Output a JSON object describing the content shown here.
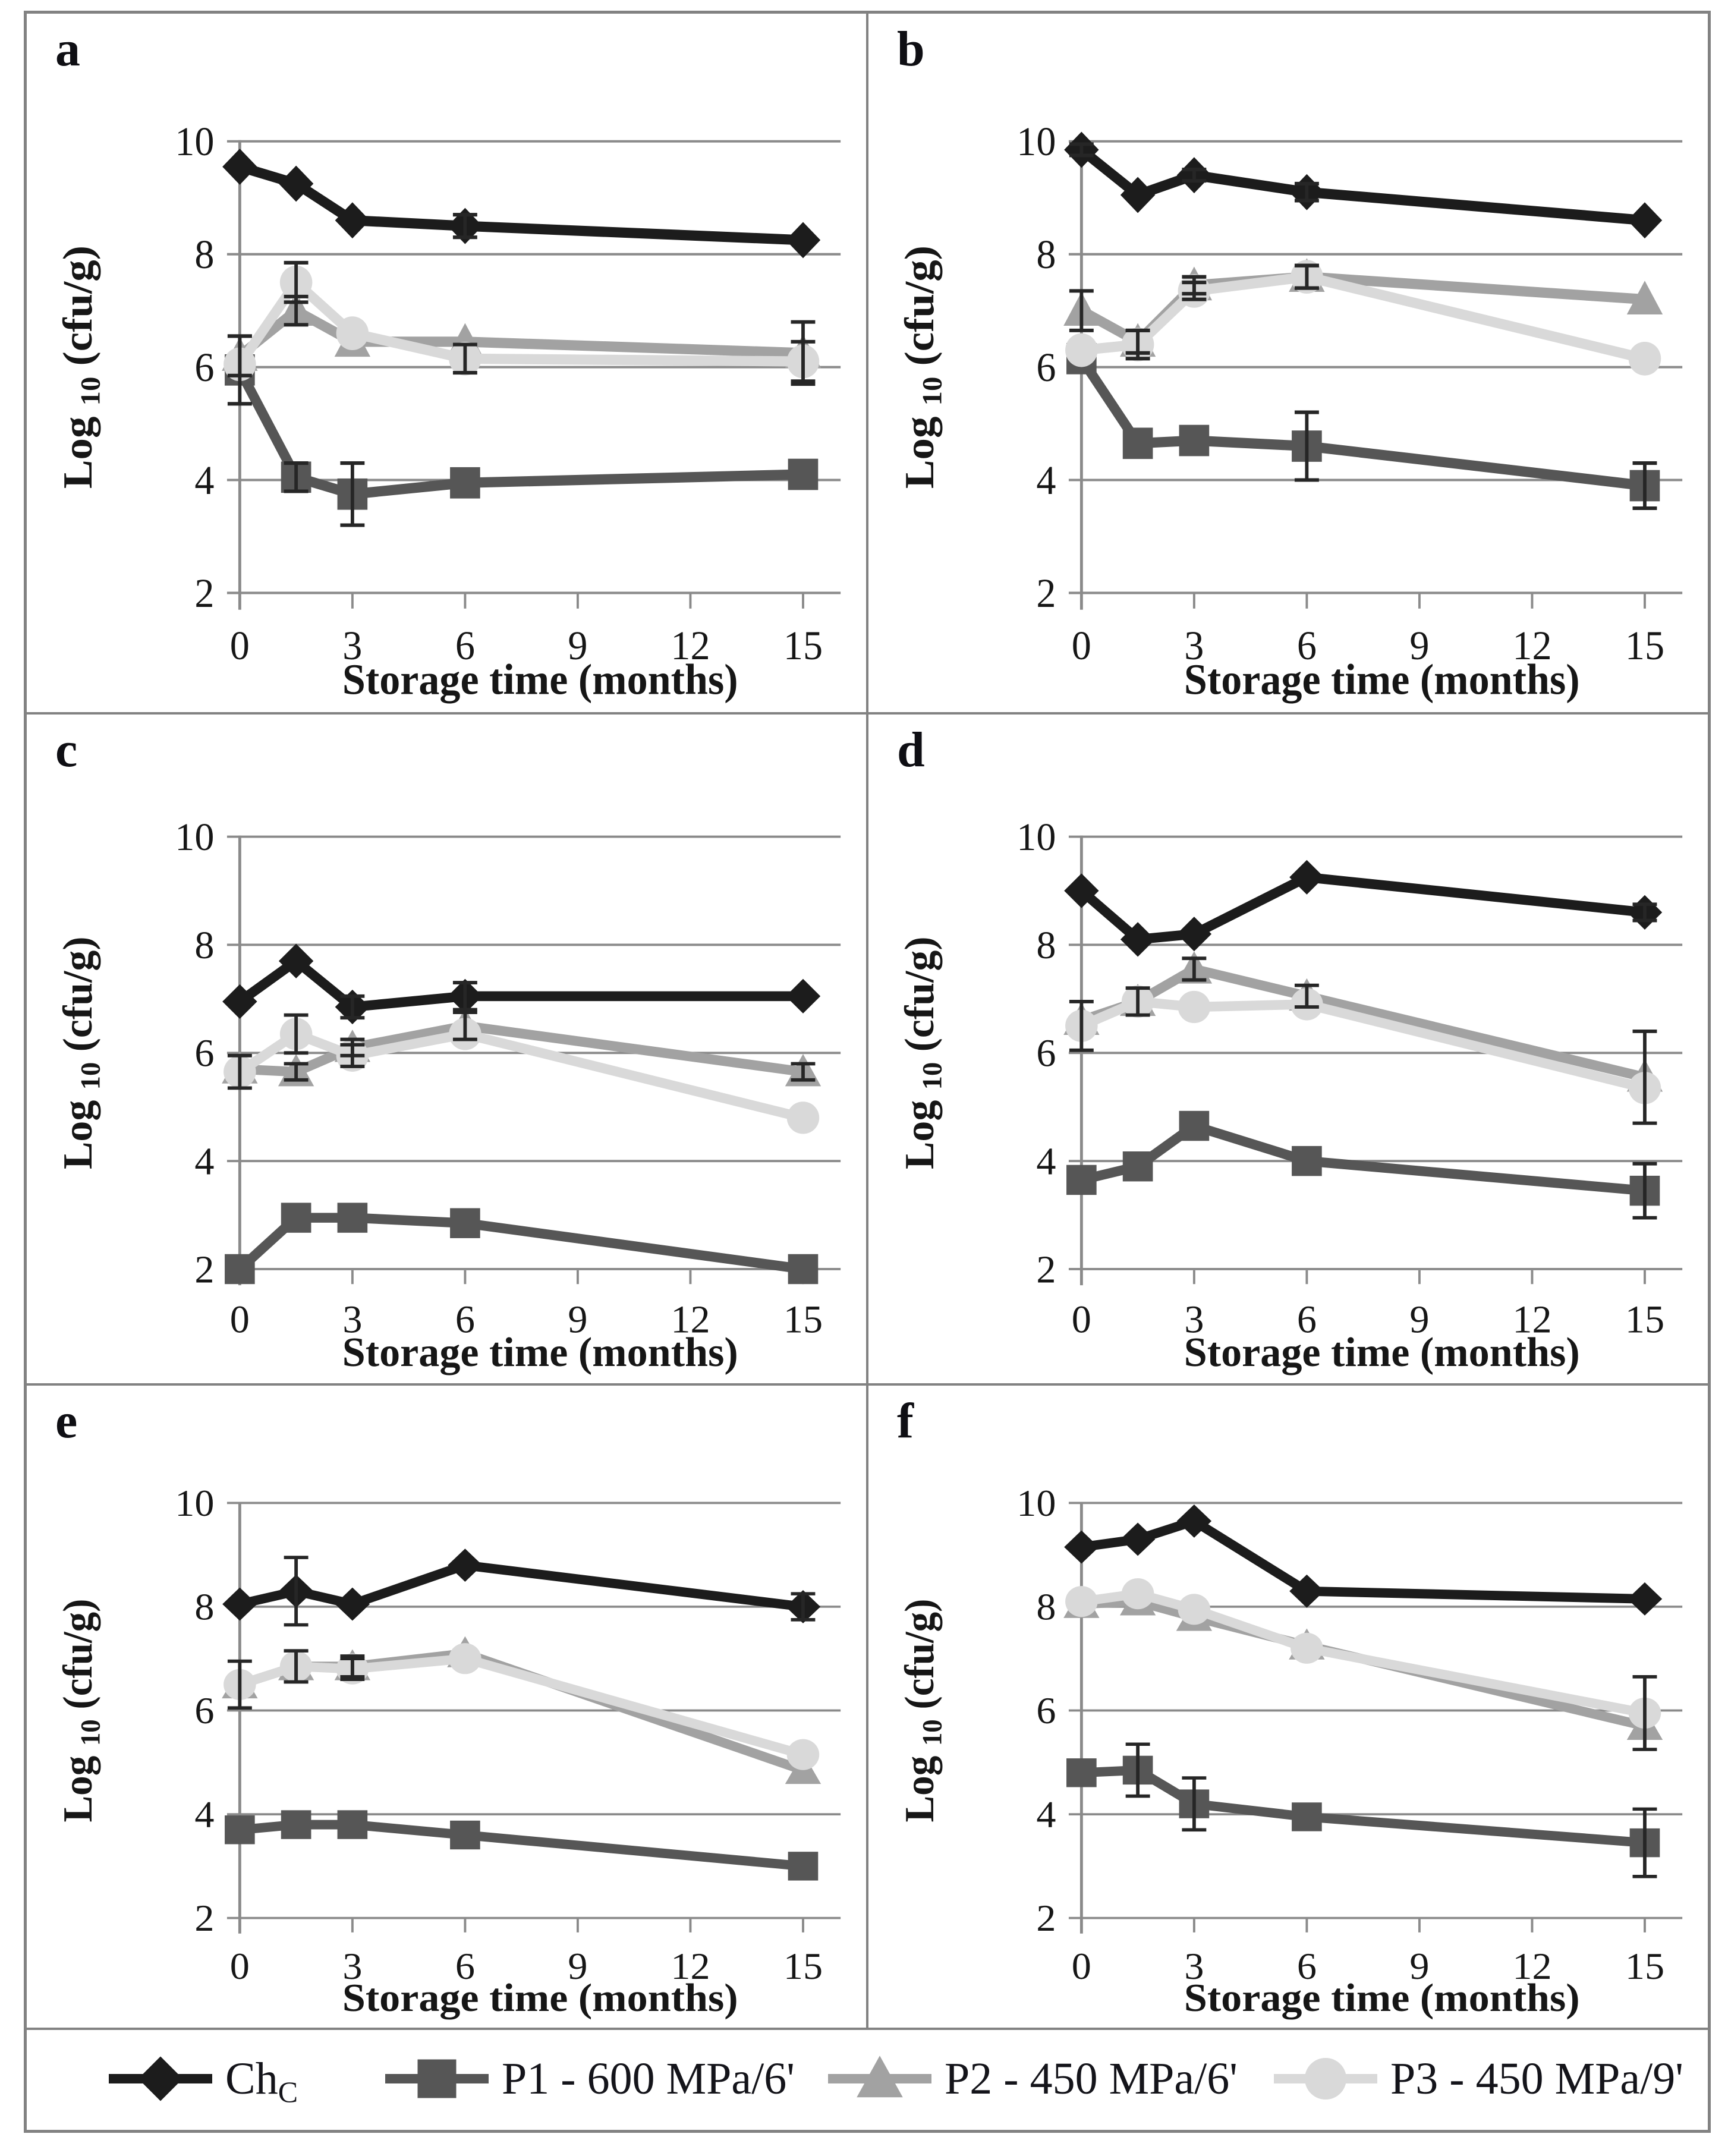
{
  "figure": {
    "background": "#ffffff",
    "border_color": "#828282",
    "grid_color": "#8a8a8a",
    "text_color": "#161616",
    "error_bar_color": "#262626"
  },
  "axes": {
    "xlabel": "Storage time (months)",
    "ylabel_word": "Log",
    "ylabel_sub": "10",
    "ylabel_units": " (cfu/g)",
    "xticks": [
      0,
      3,
      6,
      9,
      12,
      15
    ],
    "yticks": [
      2,
      4,
      6,
      8,
      10
    ],
    "xlim": [
      0,
      16
    ],
    "ylim": [
      2,
      10
    ],
    "grid": "horizontal"
  },
  "series_styles": {
    "chc": {
      "color": "#1c1c1c",
      "marker": "diamond"
    },
    "p1": {
      "color": "#565656",
      "marker": "square"
    },
    "p2": {
      "color": "#a2a2a2",
      "marker": "triangle"
    },
    "p3": {
      "color": "#d9d9d9",
      "marker": "circle"
    }
  },
  "legend": {
    "items": [
      {
        "style": "chc",
        "label": "Ch",
        "label_sub": "C"
      },
      {
        "style": "p1",
        "label": "P1 - 600 MPa/6'",
        "label_sub": ""
      },
      {
        "style": "p2",
        "label": "P2 - 450 MPa/6'",
        "label_sub": ""
      },
      {
        "style": "p3",
        "label": "P3 - 450 MPa/9'",
        "label_sub": ""
      }
    ]
  },
  "chart_data": [
    {
      "panel_label": "a",
      "type": "line",
      "x": [
        0,
        1.5,
        3,
        6,
        15
      ],
      "xlabel": "Storage time (months)",
      "ylabel": "Log 10 (cfu/g)",
      "ylim": [
        2,
        10
      ],
      "series": [
        {
          "style": "p1",
          "name": "P1 - 600 MPa/6'",
          "values": [
            5.95,
            4.05,
            3.75,
            3.95,
            4.1
          ],
          "errors": [
            0.6,
            0.25,
            0.55,
            0,
            0
          ]
        },
        {
          "style": "p2",
          "name": "P2 - 450 MPa/6'",
          "values": [
            6.2,
            7.0,
            6.45,
            6.45,
            6.25
          ],
          "errors": [
            0.35,
            0.25,
            0,
            0,
            0.55
          ]
        },
        {
          "style": "p3",
          "name": "P3 - 450 MPa/9'",
          "values": [
            6.05,
            7.5,
            6.6,
            6.15,
            6.1
          ],
          "errors": [
            0,
            0.35,
            0,
            0.25,
            0.35
          ]
        },
        {
          "style": "chc",
          "name": "ChC",
          "values": [
            9.55,
            9.25,
            8.6,
            8.5,
            8.25
          ],
          "errors": [
            0,
            0,
            0,
            0.2,
            0
          ]
        }
      ]
    },
    {
      "panel_label": "b",
      "type": "line",
      "x": [
        0,
        1.5,
        3,
        6,
        15
      ],
      "xlabel": "Storage time (months)",
      "ylabel": "Log 10 (cfu/g)",
      "ylim": [
        2,
        10
      ],
      "series": [
        {
          "style": "p1",
          "name": "P1 - 600 MPa/6'",
          "values": [
            6.15,
            4.65,
            4.7,
            4.6,
            3.9
          ],
          "errors": [
            0,
            0,
            0,
            0.6,
            0.4
          ]
        },
        {
          "style": "p2",
          "name": "P2 - 450 MPa/6'",
          "values": [
            7.0,
            6.45,
            7.45,
            7.6,
            7.2
          ],
          "errors": [
            0.35,
            0.2,
            0.15,
            0.2,
            0
          ]
        },
        {
          "style": "p3",
          "name": "P3 - 450 MPa/9'",
          "values": [
            6.3,
            6.4,
            7.35,
            7.6,
            6.15
          ],
          "errors": [
            0,
            0.25,
            0.15,
            0.2,
            0
          ]
        },
        {
          "style": "chc",
          "name": "ChC",
          "values": [
            9.85,
            9.05,
            9.4,
            9.1,
            8.6
          ],
          "errors": [
            0.1,
            0,
            0.1,
            0.15,
            0
          ]
        }
      ]
    },
    {
      "panel_label": "c",
      "type": "line",
      "x": [
        0,
        1.5,
        3,
        6,
        15
      ],
      "xlabel": "Storage time (months)",
      "ylabel": "Log 10 (cfu/g)",
      "ylim": [
        2,
        10
      ],
      "series": [
        {
          "style": "p1",
          "name": "P1 - 600 MPa/6'",
          "values": [
            2.0,
            2.95,
            2.95,
            2.85,
            2.0
          ],
          "errors": [
            0,
            0,
            0,
            0,
            0
          ]
        },
        {
          "style": "p2",
          "name": "P2 - 450 MPa/6'",
          "values": [
            5.7,
            5.65,
            6.1,
            6.5,
            5.65
          ],
          "errors": [
            0,
            0.15,
            0.15,
            0.25,
            0.15
          ]
        },
        {
          "style": "p3",
          "name": "P3 - 450 MPa/9'",
          "values": [
            5.65,
            6.35,
            5.95,
            6.35,
            4.8
          ],
          "errors": [
            0.3,
            0.35,
            0.2,
            0,
            0
          ]
        },
        {
          "style": "chc",
          "name": "ChC",
          "values": [
            6.95,
            7.7,
            6.85,
            7.05,
            7.05
          ],
          "errors": [
            0,
            0,
            0.2,
            0.25,
            0
          ]
        }
      ]
    },
    {
      "panel_label": "d",
      "type": "line",
      "x": [
        0,
        1.5,
        3,
        6,
        15
      ],
      "xlabel": "Storage time (months)",
      "ylabel": "Log 10 (cfu/g)",
      "ylim": [
        2,
        10
      ],
      "series": [
        {
          "style": "p1",
          "name": "P1 - 600 MPa/6'",
          "values": [
            3.65,
            3.9,
            4.65,
            4.0,
            3.45
          ],
          "errors": [
            0,
            0,
            0,
            0,
            0.5
          ]
        },
        {
          "style": "p2",
          "name": "P2 - 450 MPa/6'",
          "values": [
            6.6,
            6.95,
            7.55,
            7.05,
            5.55
          ],
          "errors": [
            0,
            0.25,
            0.2,
            0.2,
            0.85
          ]
        },
        {
          "style": "p3",
          "name": "P3 - 450 MPa/9'",
          "values": [
            6.5,
            6.95,
            6.85,
            6.9,
            5.35
          ],
          "errors": [
            0.45,
            0,
            0,
            0,
            0
          ]
        },
        {
          "style": "chc",
          "name": "ChC",
          "values": [
            9.0,
            8.1,
            8.2,
            9.25,
            8.6
          ],
          "errors": [
            0,
            0,
            0,
            0,
            0.15
          ]
        }
      ]
    },
    {
      "panel_label": "e",
      "type": "line",
      "x": [
        0,
        1.5,
        3,
        6,
        15
      ],
      "xlabel": "Storage time (months)",
      "ylabel": "Log 10 (cfu/g)",
      "ylim": [
        2,
        10
      ],
      "series": [
        {
          "style": "p1",
          "name": "P1 - 600 MPa/6'",
          "values": [
            3.7,
            3.8,
            3.8,
            3.6,
            3.0
          ],
          "errors": [
            0,
            0,
            0,
            0,
            0
          ]
        },
        {
          "style": "p2",
          "name": "P2 - 450 MPa/6'",
          "values": [
            6.5,
            6.85,
            6.85,
            7.1,
            4.85
          ],
          "errors": [
            0,
            0.3,
            0.2,
            0,
            0
          ]
        },
        {
          "style": "p3",
          "name": "P3 - 450 MPa/9'",
          "values": [
            6.5,
            6.85,
            6.8,
            7.0,
            5.15
          ],
          "errors": [
            0.45,
            0.3,
            0.2,
            0,
            0
          ]
        },
        {
          "style": "chc",
          "name": "ChC",
          "values": [
            8.05,
            8.3,
            8.05,
            8.8,
            8.0
          ],
          "errors": [
            0,
            0.65,
            0,
            0,
            0.25
          ]
        }
      ]
    },
    {
      "panel_label": "f",
      "type": "line",
      "x": [
        0,
        1.5,
        3,
        6,
        15
      ],
      "xlabel": "Storage time (months)",
      "ylabel": "Log 10 (cfu/g)",
      "ylim": [
        2,
        10
      ],
      "series": [
        {
          "style": "p1",
          "name": "P1 - 600 MPa/6'",
          "values": [
            4.8,
            4.85,
            4.2,
            3.95,
            3.45
          ],
          "errors": [
            0,
            0.5,
            0.5,
            0,
            0.65
          ]
        },
        {
          "style": "p2",
          "name": "P2 - 450 MPa/6'",
          "values": [
            8.05,
            8.1,
            7.8,
            7.25,
            5.7
          ],
          "errors": [
            0,
            0,
            0,
            0,
            0
          ]
        },
        {
          "style": "p3",
          "name": "P3 - 450 MPa/9'",
          "values": [
            8.1,
            8.25,
            7.95,
            7.2,
            5.95
          ],
          "errors": [
            0,
            0,
            0,
            0,
            0.7
          ]
        },
        {
          "style": "chc",
          "name": "ChC",
          "values": [
            9.15,
            9.3,
            9.65,
            8.3,
            8.15
          ],
          "errors": [
            0,
            0,
            0,
            0,
            0
          ]
        }
      ]
    }
  ]
}
